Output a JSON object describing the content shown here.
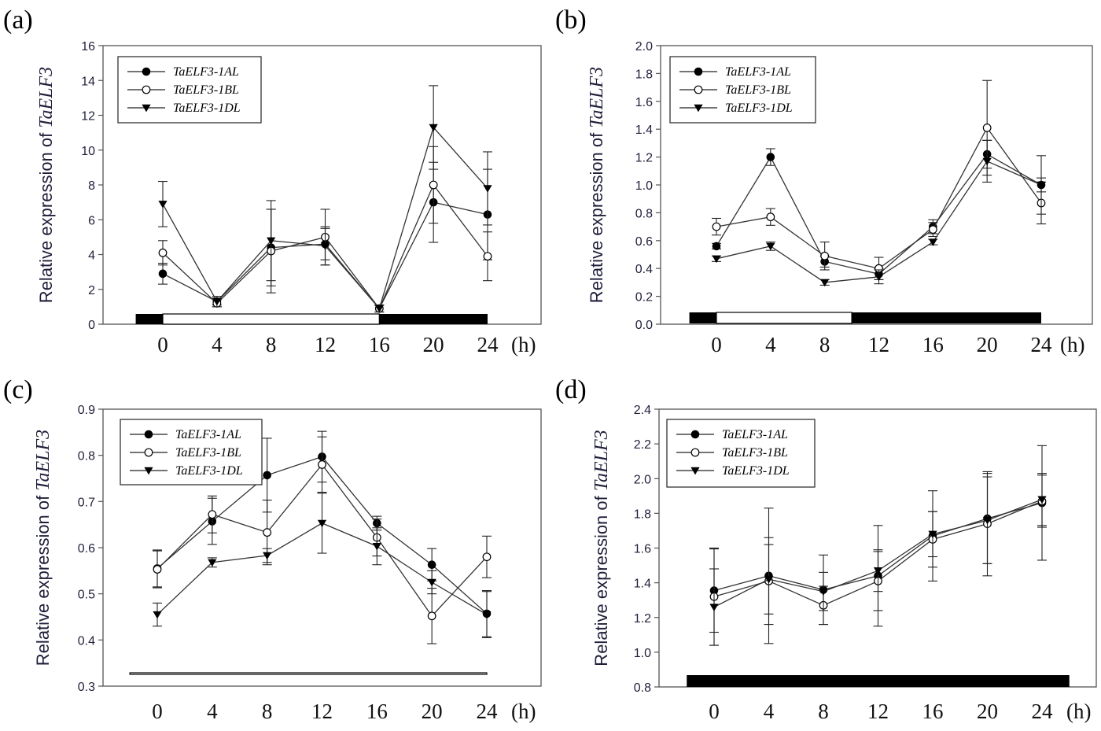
{
  "chart_data": [
    {
      "panel": "(a)",
      "type": "line",
      "ylabel_prefix": "Relative expression of ",
      "ylabel_gene": "TaELF3",
      "x_unit": "(h)",
      "x": [
        0,
        4,
        8,
        12,
        16,
        20,
        24
      ],
      "ylim": [
        0,
        16
      ],
      "yticks": [
        "0",
        "2",
        "4",
        "6",
        "8",
        "10",
        "12",
        "14",
        "16"
      ],
      "light_dark_bar": [
        {
          "from": -2,
          "to": 0,
          "phase": "dark"
        },
        {
          "from": 0,
          "to": 16,
          "phase": "light"
        },
        {
          "from": 16,
          "to": 24,
          "phase": "dark"
        }
      ],
      "series": [
        {
          "name": "TaELF3-1AL",
          "marker": "filled-circle",
          "values": [
            2.9,
            1.3,
            4.4,
            4.6,
            0.9,
            7.0,
            6.3
          ],
          "errors": [
            0.6,
            0.2,
            2.2,
            0.9,
            0.2,
            2.3,
            2.6
          ]
        },
        {
          "name": "TaELF3-1BL",
          "marker": "open-circle",
          "values": [
            4.1,
            1.2,
            4.2,
            5.0,
            0.9,
            8.0,
            3.9
          ],
          "errors": [
            0.7,
            0.2,
            2.4,
            1.6,
            0.2,
            2.2,
            1.4
          ]
        },
        {
          "name": "TaELF3-1DL",
          "marker": "filled-triangle-down",
          "values": [
            6.9,
            1.3,
            4.8,
            4.5,
            0.9,
            11.3,
            7.8
          ],
          "errors": [
            1.3,
            0.3,
            2.3,
            1.1,
            0.2,
            2.4,
            2.1
          ]
        }
      ]
    },
    {
      "panel": "(b)",
      "type": "line",
      "ylabel_prefix": "Relative expression of ",
      "ylabel_gene": "TaELF3",
      "x_unit": "(h)",
      "x": [
        0,
        4,
        8,
        12,
        16,
        20,
        24
      ],
      "ylim": [
        0,
        2
      ],
      "yticks": [
        "0.0",
        "0.2",
        "0.4",
        "0.6",
        "0.8",
        "1.0",
        "1.2",
        "1.4",
        "1.6",
        "1.8",
        "2.0"
      ],
      "light_dark_bar": [
        {
          "from": -2,
          "to": 0,
          "phase": "dark"
        },
        {
          "from": 0,
          "to": 10,
          "phase": "light"
        },
        {
          "from": 10,
          "to": 24,
          "phase": "dark"
        }
      ],
      "series": [
        {
          "name": "TaELF3-1AL",
          "marker": "filled-circle",
          "values": [
            0.56,
            1.2,
            0.45,
            0.36,
            0.7,
            1.22,
            1.0
          ],
          "errors": [
            0.02,
            0.06,
            0.04,
            0.04,
            0.05,
            0.1,
            0.05
          ]
        },
        {
          "name": "TaELF3-1BL",
          "marker": "open-circle",
          "values": [
            0.7,
            0.77,
            0.49,
            0.4,
            0.68,
            1.41,
            0.87
          ],
          "errors": [
            0.06,
            0.06,
            0.1,
            0.08,
            0.05,
            0.34,
            0.15
          ]
        },
        {
          "name": "TaELF3-1DL",
          "marker": "filled-triangle-down",
          "values": [
            0.47,
            0.56,
            0.3,
            0.34,
            0.59,
            1.17,
            1.0
          ],
          "errors": [
            0.02,
            0.03,
            0.02,
            0.05,
            0.02,
            0.15,
            0.21
          ]
        }
      ]
    },
    {
      "panel": "(c)",
      "type": "line",
      "ylabel_prefix": "Relative expression of ",
      "ylabel_gene": "TaELF3",
      "x_unit": "(h)",
      "x": [
        0,
        4,
        8,
        12,
        16,
        20,
        24
      ],
      "ylim": [
        0.3,
        0.9
      ],
      "yticks": [
        "0.3",
        "0.4",
        "0.5",
        "0.6",
        "0.7",
        "0.8",
        "0.9"
      ],
      "light_dark_bar": [
        {
          "from": -2,
          "to": 24,
          "phase": "light"
        }
      ],
      "series": [
        {
          "name": "TaELF3-1AL",
          "marker": "filled-circle",
          "values": [
            0.555,
            0.657,
            0.757,
            0.797,
            0.653,
            0.563,
            0.457
          ],
          "errors": [
            0.04,
            0.05,
            0.08,
            0.055,
            0.015,
            0.035,
            0.05
          ]
        },
        {
          "name": "TaELF3-1BL",
          "marker": "open-circle",
          "values": [
            0.553,
            0.672,
            0.633,
            0.78,
            0.622,
            0.452,
            0.58
          ],
          "errors": [
            0.04,
            0.04,
            0.07,
            0.06,
            0.04,
            0.06,
            0.045
          ]
        },
        {
          "name": "TaELF3-1DL",
          "marker": "filled-triangle-down",
          "values": [
            0.455,
            0.568,
            0.583,
            0.653,
            0.603,
            0.525,
            0.455
          ],
          "errors": [
            0.025,
            0.01,
            0.015,
            0.065,
            0.04,
            0.025,
            0.05
          ]
        }
      ]
    },
    {
      "panel": "(d)",
      "type": "line",
      "ylabel_prefix": "Relative expression of ",
      "ylabel_gene": "TaELF3",
      "x_unit": "(h)",
      "x": [
        0,
        4,
        8,
        12,
        16,
        20,
        24
      ],
      "ylim": [
        0.8,
        2.4
      ],
      "yticks": [
        "0.8",
        "1.0",
        "1.2",
        "1.4",
        "1.6",
        "1.8",
        "2.0",
        "2.2",
        "2.4"
      ],
      "light_dark_bar": [
        {
          "from": -2,
          "to": 26,
          "phase": "dark"
        }
      ],
      "series": [
        {
          "name": "TaELF3-1AL",
          "marker": "filled-circle",
          "values": [
            1.355,
            1.44,
            1.36,
            1.44,
            1.67,
            1.77,
            1.86
          ],
          "errors": [
            0.24,
            0.39,
            0.2,
            0.29,
            0.26,
            0.26,
            0.33
          ]
        },
        {
          "name": "TaELF3-1BL",
          "marker": "open-circle",
          "values": [
            1.32,
            1.41,
            1.27,
            1.41,
            1.65,
            1.74,
            1.87
          ],
          "errors": [
            0.28,
            0.25,
            0.11,
            0.17,
            0.16,
            0.3,
            0.15
          ]
        },
        {
          "name": "TaELF3-1DL",
          "marker": "filled-triangle-down",
          "values": [
            1.26,
            1.42,
            1.35,
            1.47,
            1.68,
            1.76,
            1.88
          ],
          "errors": [
            0.22,
            0.2,
            0.11,
            0.12,
            0.13,
            0.25,
            0.15
          ]
        }
      ]
    }
  ]
}
